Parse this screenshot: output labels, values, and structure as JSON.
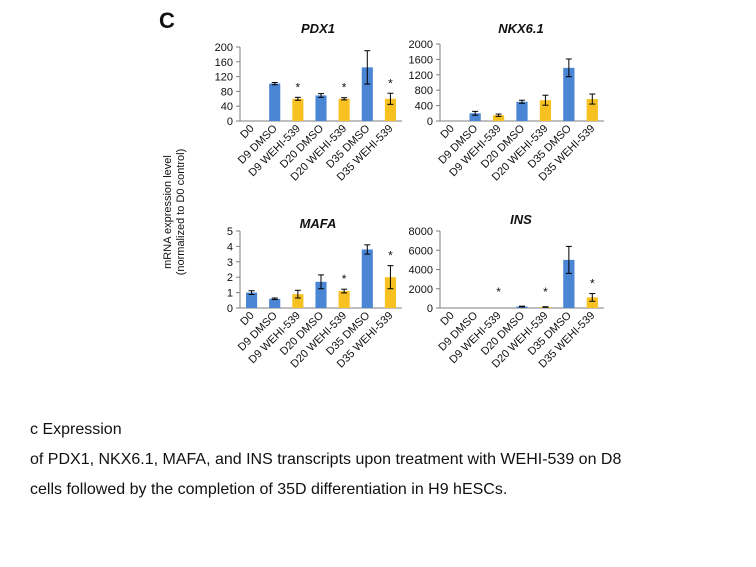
{
  "figure": {
    "panel_letter": "C",
    "y_axis_label_line1": "mRNA expression level",
    "y_axis_label_line2": "(normalized to D0 control)"
  },
  "colors": {
    "dmso": "#4a86d4",
    "wehi": "#f7c121",
    "axis": "#7f7f7f",
    "error": "#000000"
  },
  "chart_data": [
    {
      "type": "bar",
      "title": "PDX1",
      "categories": [
        "D0",
        "D9 DMSO",
        "D9 WEHI-539",
        "D20 DMSO",
        "D20 WEHI-539",
        "D35 DMSO",
        "D35 WEHI-539"
      ],
      "values": [
        0,
        101,
        60,
        69,
        60,
        145,
        60
      ],
      "errors": [
        0,
        3,
        4,
        5,
        3,
        45,
        15
      ],
      "significance": [
        "",
        "",
        "*",
        "",
        "*",
        "",
        "*"
      ],
      "bar_colors": [
        "dmso",
        "dmso",
        "wehi",
        "dmso",
        "wehi",
        "dmso",
        "wehi"
      ],
      "ylim": [
        0,
        200
      ],
      "yticks": [
        0,
        40,
        80,
        120,
        160,
        200
      ],
      "ytick_labels": [
        "0",
        "40",
        "80",
        "120",
        "160",
        "200"
      ]
    },
    {
      "type": "bar",
      "title": "NKX6.1",
      "categories": [
        "D0",
        "D9 DMSO",
        "D9 WEHI-539",
        "D20 DMSO",
        "D20 WEHI-539",
        "D35 DMSO",
        "D35 WEHI-539"
      ],
      "values": [
        0,
        200,
        150,
        500,
        540,
        1380,
        570
      ],
      "errors": [
        0,
        50,
        30,
        40,
        130,
        230,
        130
      ],
      "significance": [
        "",
        "",
        "",
        "",
        "",
        "",
        ""
      ],
      "bar_colors": [
        "dmso",
        "dmso",
        "wehi",
        "dmso",
        "wehi",
        "dmso",
        "wehi"
      ],
      "ylim": [
        0,
        2000
      ],
      "yticks": [
        0,
        400,
        800,
        1200,
        1600,
        2000
      ],
      "ytick_labels": [
        "0",
        "400",
        "800",
        "1200",
        "1600",
        "2000"
      ]
    },
    {
      "type": "bar",
      "title": "MAFA",
      "categories": [
        "D0",
        "D9 DMSO",
        "D9 WEHI-539",
        "D20 DMSO",
        "D20 WEHI-539",
        "D35 DMSO",
        "D35 WEHI-539"
      ],
      "values": [
        1.0,
        0.6,
        0.9,
        1.7,
        1.1,
        3.8,
        2.0
      ],
      "errors": [
        0.12,
        0.05,
        0.25,
        0.45,
        0.12,
        0.3,
        0.75
      ],
      "significance": [
        "",
        "",
        "",
        "",
        "*",
        "",
        "*"
      ],
      "bar_colors": [
        "dmso",
        "dmso",
        "wehi",
        "dmso",
        "wehi",
        "dmso",
        "wehi"
      ],
      "ylim": [
        0,
        5
      ],
      "yticks": [
        0,
        1,
        2,
        3,
        4,
        5
      ],
      "ytick_labels": [
        "0",
        "1",
        "2",
        "3",
        "4",
        "5"
      ]
    },
    {
      "type": "bar",
      "title": "INS",
      "categories": [
        "D0",
        "D9 DMSO",
        "D9 WEHI-539",
        "D20 DMSO",
        "D20 WEHI-539",
        "D35 DMSO",
        "D35 WEHI-539"
      ],
      "values": [
        0,
        0,
        0,
        150,
        100,
        5000,
        1100
      ],
      "errors": [
        0,
        0,
        0,
        40,
        30,
        1400,
        400
      ],
      "significance": [
        "",
        "",
        "*",
        "",
        "*",
        "",
        "*"
      ],
      "bar_colors": [
        "dmso",
        "dmso",
        "wehi",
        "dmso",
        "wehi",
        "dmso",
        "wehi"
      ],
      "ylim": [
        0,
        8000
      ],
      "yticks": [
        0,
        2000,
        4000,
        6000,
        8000
      ],
      "ytick_labels": [
        "0",
        "2000",
        "4000",
        "6000",
        "8000"
      ]
    }
  ],
  "caption": {
    "line1": "c Expression",
    "line2": "of PDX1, NKX6.1, MAFA, and INS transcripts upon treatment with WEHI-539 on D8",
    "line3": "cells followed by the completion of 35D differentiation in H9 hESCs."
  }
}
